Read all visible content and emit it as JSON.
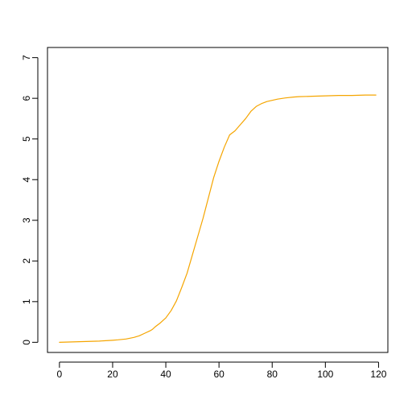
{
  "chart_data": {
    "type": "line",
    "title": "",
    "xlabel": "",
    "ylabel": "",
    "xlim": [
      -4.5,
      123.5
    ],
    "ylim": [
      -0.25,
      7.25
    ],
    "x_ticks": [
      0,
      20,
      40,
      60,
      80,
      100,
      120
    ],
    "x_tick_labels": [
      "0",
      "20",
      "40",
      "60",
      "80",
      "100",
      "120"
    ],
    "y_ticks": [
      0,
      1,
      2,
      3,
      4,
      5,
      6,
      7
    ],
    "y_tick_labels": [
      "0",
      "1",
      "2",
      "3",
      "4",
      "5",
      "6",
      "7"
    ],
    "grid": false,
    "series": [
      {
        "color": "#f5a500",
        "x": [
          0,
          5,
          10,
          15,
          20,
          22,
          25,
          28,
          30,
          32,
          34,
          35,
          36,
          38,
          40,
          42,
          44,
          46,
          48,
          50,
          52,
          54,
          56,
          58,
          60,
          62,
          64,
          65,
          66,
          68,
          70,
          72,
          74,
          76,
          78,
          80,
          82,
          85,
          88,
          90,
          95,
          100,
          105,
          110,
          115,
          119
        ],
        "y": [
          0.0,
          0.01,
          0.02,
          0.03,
          0.05,
          0.06,
          0.08,
          0.12,
          0.16,
          0.22,
          0.28,
          0.32,
          0.38,
          0.48,
          0.6,
          0.78,
          1.02,
          1.35,
          1.7,
          2.15,
          2.6,
          3.05,
          3.55,
          4.05,
          4.45,
          4.8,
          5.1,
          5.15,
          5.2,
          5.35,
          5.5,
          5.68,
          5.8,
          5.87,
          5.92,
          5.95,
          5.98,
          6.01,
          6.03,
          6.04,
          6.05,
          6.06,
          6.07,
          6.07,
          6.08,
          6.08
        ]
      }
    ]
  }
}
